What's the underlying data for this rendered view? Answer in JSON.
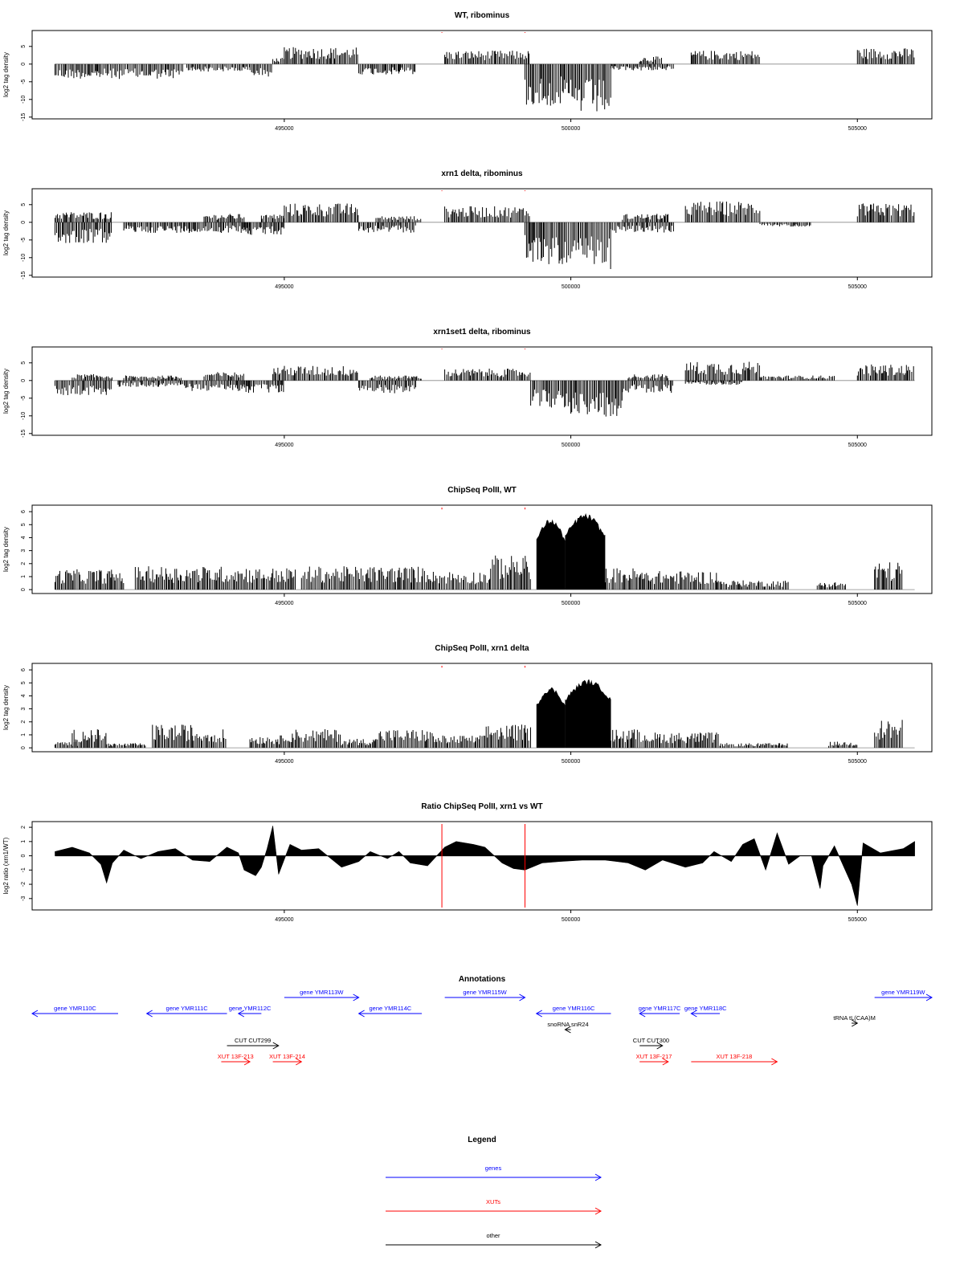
{
  "chart_data": [
    {
      "type": "bar",
      "title": "WT, ribominus",
      "xlabel": "",
      "ylabel": "log2 tag density",
      "xlim": [
        490600,
        506300
      ],
      "ylim": [
        -15.5,
        9.5
      ],
      "xticks": [
        495000,
        500000,
        505000
      ],
      "xtick_labels": [
        "495000",
        "500000",
        "505000"
      ],
      "yticks": [
        -15,
        -10,
        -5,
        0,
        5
      ],
      "ytick_labels": [
        "-15",
        "-10",
        "-5",
        "0",
        "5"
      ],
      "red_markers": [
        497750,
        499200
      ],
      "regions": [
        {
          "from": 491000,
          "to": 493250,
          "level": -3.5
        },
        {
          "from": 493300,
          "to": 494400,
          "level": -1.8
        },
        {
          "from": 494400,
          "to": 494800,
          "level": -3.0
        },
        {
          "from": 494800,
          "to": 495000,
          "level": 1.5
        },
        {
          "from": 495000,
          "to": 496300,
          "level": 4.0
        },
        {
          "from": 496300,
          "to": 497300,
          "level": -2.5
        },
        {
          "from": 497800,
          "to": 499300,
          "level": 3.2
        },
        {
          "from": 499200,
          "to": 499900,
          "level": -10.0
        },
        {
          "from": 499900,
          "to": 500700,
          "level": -12.0
        },
        {
          "from": 500700,
          "to": 501800,
          "level": -1.5
        },
        {
          "from": 501200,
          "to": 501600,
          "level": 1.8
        },
        {
          "from": 502100,
          "to": 503300,
          "level": 3.2
        },
        {
          "from": 505000,
          "to": 506000,
          "level": 3.8
        }
      ]
    },
    {
      "type": "bar",
      "title": "xrn1 delta, ribominus",
      "xlabel": "",
      "ylabel": "log2 tag density",
      "xlim": [
        490600,
        506300
      ],
      "ylim": [
        -15.5,
        9.5
      ],
      "xticks": [
        495000,
        500000,
        505000
      ],
      "xtick_labels": [
        "495000",
        "500000",
        "505000"
      ],
      "yticks": [
        -15,
        -10,
        -5,
        0,
        5
      ],
      "ytick_labels": [
        "-15",
        "-10",
        "-5",
        "0",
        "5"
      ],
      "red_markers": [
        497750,
        499200
      ],
      "regions": [
        {
          "from": 491000,
          "to": 492000,
          "level": -5.0
        },
        {
          "from": 491000,
          "to": 492000,
          "level": 2.5
        },
        {
          "from": 492200,
          "to": 494400,
          "level": -2.5
        },
        {
          "from": 493600,
          "to": 494300,
          "level": 2.0
        },
        {
          "from": 494300,
          "to": 495000,
          "level": -3.0
        },
        {
          "from": 494600,
          "to": 495000,
          "level": 2.0
        },
        {
          "from": 495000,
          "to": 496300,
          "level": 4.5
        },
        {
          "from": 496300,
          "to": 497300,
          "level": -2.5
        },
        {
          "from": 496600,
          "to": 497400,
          "level": 1.5
        },
        {
          "from": 497800,
          "to": 499300,
          "level": 3.8
        },
        {
          "from": 499200,
          "to": 499900,
          "level": -10.0
        },
        {
          "from": 499900,
          "to": 500700,
          "level": -11.5
        },
        {
          "from": 500700,
          "to": 501800,
          "level": -2.5
        },
        {
          "from": 500900,
          "to": 501700,
          "level": 2.0
        },
        {
          "from": 502000,
          "to": 503300,
          "level": 5.0
        },
        {
          "from": 503300,
          "to": 504200,
          "level": -1.0
        },
        {
          "from": 505000,
          "to": 506000,
          "level": 4.5
        }
      ]
    },
    {
      "type": "bar",
      "title": "xrn1set1 delta, ribominus",
      "xlabel": "",
      "ylabel": "log2 tag density",
      "xlim": [
        490600,
        506300
      ],
      "ylim": [
        -15.5,
        9.5
      ],
      "xticks": [
        495000,
        500000,
        505000
      ],
      "xtick_labels": [
        "495000",
        "500000",
        "505000"
      ],
      "yticks": [
        -15,
        -10,
        -5,
        0,
        5
      ],
      "ytick_labels": [
        "-15",
        "-10",
        "-5",
        "0",
        "5"
      ],
      "red_markers": [
        497750,
        499200
      ],
      "regions": [
        {
          "from": 491000,
          "to": 492000,
          "level": -3.5
        },
        {
          "from": 491300,
          "to": 492000,
          "level": 1.5
        },
        {
          "from": 492100,
          "to": 493200,
          "level": -1.5
        },
        {
          "from": 492200,
          "to": 493200,
          "level": 1.2
        },
        {
          "from": 493200,
          "to": 494400,
          "level": -2.5
        },
        {
          "from": 493600,
          "to": 494300,
          "level": 2.0
        },
        {
          "from": 494300,
          "to": 495000,
          "level": -3.0
        },
        {
          "from": 494800,
          "to": 496300,
          "level": 3.5
        },
        {
          "from": 496300,
          "to": 497300,
          "level": -3.0
        },
        {
          "from": 496500,
          "to": 497400,
          "level": 1.2
        },
        {
          "from": 497800,
          "to": 499300,
          "level": 2.8
        },
        {
          "from": 499300,
          "to": 500000,
          "level": -6.5
        },
        {
          "from": 500000,
          "to": 500900,
          "level": -8.5
        },
        {
          "from": 500900,
          "to": 501800,
          "level": -3.0
        },
        {
          "from": 501000,
          "to": 501700,
          "level": 1.5
        },
        {
          "from": 502000,
          "to": 503300,
          "level": 4.5
        },
        {
          "from": 502000,
          "to": 503000,
          "level": -1.0
        },
        {
          "from": 503300,
          "to": 504600,
          "level": 1.2
        },
        {
          "from": 505000,
          "to": 506000,
          "level": 3.8
        }
      ]
    },
    {
      "type": "bar",
      "title": "ChipSeq PolII, WT",
      "xlabel": "",
      "ylabel": "log2 tag density",
      "xlim": [
        490600,
        506300
      ],
      "ylim": [
        -0.3,
        6.5
      ],
      "xticks": [
        495000,
        500000,
        505000
      ],
      "xtick_labels": [
        "495000",
        "500000",
        "505000"
      ],
      "yticks": [
        0,
        1,
        2,
        3,
        4,
        5,
        6
      ],
      "ytick_labels": [
        "0",
        "1",
        "2",
        "3",
        "4",
        "5",
        "6"
      ],
      "red_markers": [
        497750,
        499200
      ],
      "regions": [
        {
          "from": 491000,
          "to": 492200,
          "level": 1.3
        },
        {
          "from": 492400,
          "to": 493300,
          "level": 1.5
        },
        {
          "from": 493300,
          "to": 494400,
          "level": 1.5
        },
        {
          "from": 494400,
          "to": 495200,
          "level": 1.4
        },
        {
          "from": 495300,
          "to": 496500,
          "level": 1.5
        },
        {
          "from": 496500,
          "to": 497600,
          "level": 1.5
        },
        {
          "from": 497600,
          "to": 498600,
          "level": 1.2
        },
        {
          "from": 498600,
          "to": 499300,
          "level": 2.2
        },
        {
          "from": 499400,
          "to": 499900,
          "level": 5.5,
          "solid": true
        },
        {
          "from": 499900,
          "to": 500600,
          "level": 5.9,
          "solid": true
        },
        {
          "from": 500600,
          "to": 501200,
          "level": 1.4
        },
        {
          "from": 501200,
          "to": 502600,
          "level": 1.2
        },
        {
          "from": 502600,
          "to": 503800,
          "level": 0.6
        },
        {
          "from": 504300,
          "to": 504800,
          "level": 0.5
        },
        {
          "from": 505300,
          "to": 505800,
          "level": 1.8
        }
      ]
    },
    {
      "type": "bar",
      "title": "ChipSeq PolII, xrn1 delta",
      "xlabel": "",
      "ylabel": "log2 tag density",
      "xlim": [
        490600,
        506300
      ],
      "ylim": [
        -0.3,
        6.5
      ],
      "xticks": [
        495000,
        500000,
        505000
      ],
      "xtick_labels": [
        "495000",
        "500000",
        "505000"
      ],
      "yticks": [
        0,
        1,
        2,
        3,
        4,
        5,
        6
      ],
      "ytick_labels": [
        "0",
        "1",
        "2",
        "3",
        "4",
        "5",
        "6"
      ],
      "red_markers": [
        497750,
        499200
      ],
      "regions": [
        {
          "from": 491000,
          "to": 491400,
          "level": 0.4
        },
        {
          "from": 491300,
          "to": 491900,
          "level": 1.2
        },
        {
          "from": 491900,
          "to": 492600,
          "level": 0.3
        },
        {
          "from": 492700,
          "to": 493400,
          "level": 1.5
        },
        {
          "from": 493400,
          "to": 494000,
          "level": 1.2
        },
        {
          "from": 494400,
          "to": 495000,
          "level": 0.8
        },
        {
          "from": 495000,
          "to": 496000,
          "level": 1.2
        },
        {
          "from": 496000,
          "to": 496600,
          "level": 0.6
        },
        {
          "from": 496600,
          "to": 497600,
          "level": 1.2
        },
        {
          "from": 497600,
          "to": 498500,
          "level": 0.8
        },
        {
          "from": 498500,
          "to": 499300,
          "level": 1.5
        },
        {
          "from": 499400,
          "to": 499900,
          "level": 4.7,
          "solid": true
        },
        {
          "from": 499900,
          "to": 500700,
          "level": 5.3,
          "solid": true
        },
        {
          "from": 500700,
          "to": 501300,
          "level": 1.2
        },
        {
          "from": 501300,
          "to": 502600,
          "level": 1.0
        },
        {
          "from": 502600,
          "to": 503800,
          "level": 0.3
        },
        {
          "from": 504500,
          "to": 505000,
          "level": 0.4
        },
        {
          "from": 505300,
          "to": 505800,
          "level": 1.8
        }
      ]
    },
    {
      "type": "area",
      "title": "Ratio ChipSeq PolII, xrn1 vs WT",
      "xlabel": "",
      "ylabel": "log2 ratio (xrn1/WT)",
      "xlim": [
        490600,
        506300
      ],
      "ylim": [
        -3.8,
        2.4
      ],
      "xticks": [
        495000,
        500000,
        505000
      ],
      "xtick_labels": [
        "495000",
        "500000",
        "505000"
      ],
      "yticks": [
        -3,
        -2,
        -1,
        0,
        1,
        2
      ],
      "ytick_labels": [
        "-3",
        "-2",
        "-1",
        "0",
        "1",
        "2"
      ],
      "red_markers": [
        497750,
        499200
      ],
      "x": [
        491000,
        491300,
        491600,
        491800,
        491900,
        492000,
        492200,
        492500,
        492800,
        493100,
        493400,
        493700,
        494000,
        494200,
        494300,
        494500,
        494600,
        494700,
        494800,
        494900,
        495100,
        495300,
        495600,
        496000,
        496300,
        496500,
        496800,
        497000,
        497200,
        497500,
        497800,
        498000,
        498300,
        498500,
        498800,
        499000,
        499200,
        499500,
        499800,
        500200,
        500600,
        501000,
        501300,
        501600,
        502000,
        502300,
        502500,
        502800,
        503000,
        503200,
        503400,
        503600,
        503800,
        504000,
        504200,
        504350,
        504400,
        504600,
        504900,
        505000,
        505100,
        505400,
        505800,
        506000
      ],
      "y": [
        0.3,
        0.6,
        0.2,
        -0.6,
        -1.9,
        -0.5,
        0.4,
        -0.2,
        0.3,
        0.5,
        -0.3,
        -0.4,
        0.6,
        0.2,
        -1.0,
        -1.4,
        -0.8,
        0.5,
        2.1,
        -1.3,
        0.8,
        0.4,
        0.5,
        -0.8,
        -0.4,
        0.3,
        -0.2,
        0.3,
        -0.5,
        -0.7,
        0.6,
        1.0,
        0.8,
        0.6,
        -0.5,
        -0.9,
        -1.0,
        -0.5,
        -0.4,
        -0.3,
        -0.3,
        -0.5,
        -1.0,
        -0.3,
        -0.8,
        -0.5,
        0.3,
        -0.4,
        0.8,
        1.2,
        -1.0,
        1.6,
        -0.6,
        0.0,
        0.0,
        -2.3,
        -0.7,
        0.7,
        -2.0,
        -3.5,
        0.9,
        0.2,
        0.5,
        1.0
      ]
    }
  ],
  "annotations": {
    "title": "Annotations",
    "xlim": [
      490600,
      506300
    ],
    "features": [
      {
        "label": "gene YMR110C",
        "from": 492100,
        "to": 490600,
        "row": 0,
        "kind": "gene"
      },
      {
        "label": "gene YMR111C",
        "from": 494000,
        "to": 492600,
        "row": 0,
        "kind": "gene"
      },
      {
        "label": "gene YMR112C",
        "from": 494600,
        "to": 494200,
        "row": 0,
        "kind": "gene"
      },
      {
        "label": "gene YMR113W",
        "from": 495000,
        "to": 496300,
        "row": -1,
        "kind": "gene"
      },
      {
        "label": "gene YMR114C",
        "from": 497400,
        "to": 496300,
        "row": 0,
        "kind": "gene"
      },
      {
        "label": "gene YMR115W",
        "from": 497800,
        "to": 499200,
        "row": -1,
        "kind": "gene"
      },
      {
        "label": "gene YMR116C",
        "from": 500700,
        "to": 499400,
        "row": 0,
        "kind": "gene"
      },
      {
        "label": "gene YMR117C",
        "from": 501900,
        "to": 501200,
        "row": 0,
        "kind": "gene"
      },
      {
        "label": "gene YMR118C",
        "from": 502600,
        "to": 502100,
        "row": 0,
        "kind": "gene"
      },
      {
        "label": "gene YMR119W",
        "from": 505300,
        "to": 506300,
        "row": -1,
        "kind": "gene"
      },
      {
        "label": "snoRNA snR24",
        "from": 500000,
        "to": 499900,
        "row": 1,
        "kind": "other"
      },
      {
        "label": "tRNA tL(CAA)M",
        "from": 504900,
        "to": 505000,
        "row": 0.6,
        "kind": "other"
      },
      {
        "label": "CUT CUT299",
        "from": 494000,
        "to": 494900,
        "row": 2,
        "kind": "other"
      },
      {
        "label": "CUT CUT300",
        "from": 501200,
        "to": 501600,
        "row": 2,
        "kind": "other"
      },
      {
        "label": "XUT 13F-213",
        "from": 493900,
        "to": 494400,
        "row": 3,
        "kind": "xut"
      },
      {
        "label": "XUT 13F-214",
        "from": 494800,
        "to": 495300,
        "row": 3,
        "kind": "xut"
      },
      {
        "label": "XUT 13F-217",
        "from": 501200,
        "to": 501700,
        "row": 3,
        "kind": "xut"
      },
      {
        "label": "XUT 13F-218",
        "from": 502100,
        "to": 503600,
        "row": 3,
        "kind": "xut"
      }
    ]
  },
  "legend": {
    "title": "Legend",
    "items": [
      {
        "label": "genes",
        "kind": "gene"
      },
      {
        "label": "XUTs",
        "kind": "xut"
      },
      {
        "label": "other",
        "kind": "other"
      }
    ]
  },
  "colors": {
    "gene": "#0000ff",
    "xut": "#ff0000",
    "other": "#000000",
    "marker": "#ff0000",
    "bars": "#000000"
  }
}
